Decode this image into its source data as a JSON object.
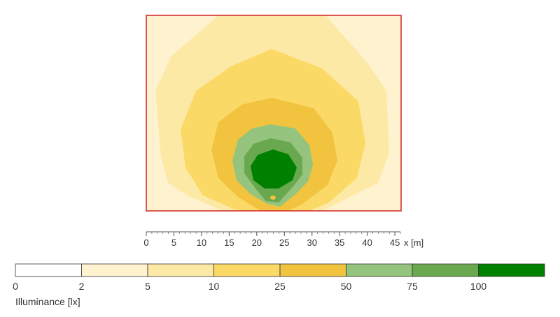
{
  "chart_data": {
    "type": "heatmap",
    "title": "",
    "x_axis": {
      "unit_label": "x [m]",
      "ticks": [
        0,
        5,
        10,
        15,
        20,
        25,
        30,
        35,
        40,
        45
      ],
      "range": [
        0,
        46
      ]
    },
    "legend": {
      "title": "Illuminance [lx]",
      "thresholds": [
        0,
        2,
        5,
        10,
        25,
        50,
        75,
        100
      ],
      "bins": [
        {
          "from": 0,
          "to": 2,
          "color": "#ffffff"
        },
        {
          "from": 2,
          "to": 5,
          "color": "#fff2cf"
        },
        {
          "from": 5,
          "to": 10,
          "color": "#fde9a6"
        },
        {
          "from": 10,
          "to": 25,
          "color": "#fbd966"
        },
        {
          "from": 25,
          "to": 50,
          "color": "#f1c33e"
        },
        {
          "from": 50,
          "to": 75,
          "color": "#94c47e"
        },
        {
          "from": 75,
          "to": 100,
          "color": "#6aa84f"
        },
        {
          "from": 100,
          "to": null,
          "color": "#008000"
        }
      ]
    },
    "boundary_color": "#d32f2f",
    "grid": false
  }
}
